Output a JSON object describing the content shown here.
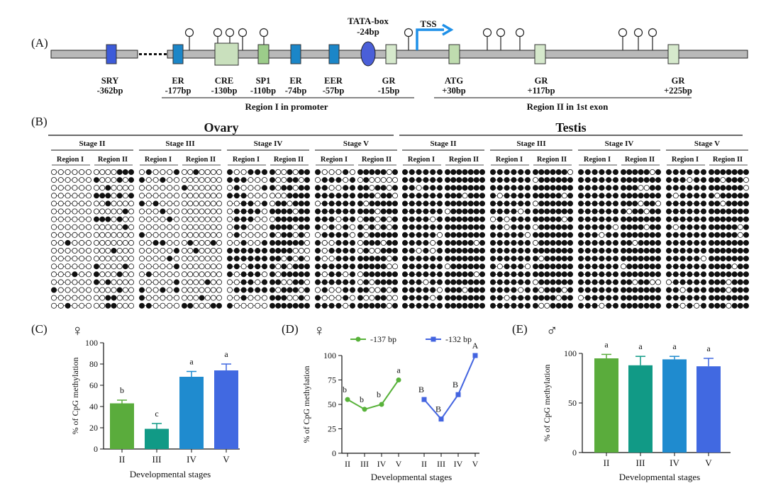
{
  "panels": {
    "A": "(A)",
    "B": "(B)",
    "C": "(C)",
    "D": "(D)",
    "E": "(E)"
  },
  "gene_map": {
    "tata_label": "TATA-box",
    "tata_pos": "-24bp",
    "tss_label": "TSS",
    "elements": [
      {
        "name": "SRY",
        "pos": "-362bp",
        "color": "#3d5bd9"
      },
      {
        "name": "ER",
        "pos": "-177bp",
        "color": "#1b86c8"
      },
      {
        "name": "CRE",
        "pos": "-130bp",
        "color": "#c9e0bd"
      },
      {
        "name": "SP1",
        "pos": "-110bp",
        "color": "#9ccc8a"
      },
      {
        "name": "ER",
        "pos": "-74bp",
        "color": "#1b86c8"
      },
      {
        "name": "EER",
        "pos": "-57bp",
        "color": "#1b86c8"
      },
      {
        "name": "GR",
        "pos": "-15bp",
        "color": "#d6e9cc"
      },
      {
        "name": "ATG",
        "pos": "+30bp",
        "color": "#bfdcaf"
      },
      {
        "name": "GR",
        "pos": "+117bp",
        "color": "#d6e9cc"
      },
      {
        "name": "GR",
        "pos": "+225bp",
        "color": "#d6e9cc"
      }
    ],
    "region1_label": "Region I  in promoter",
    "region2_label": "Region II in 1st exon"
  },
  "methylation": {
    "tissues": [
      "Ovary",
      "Testis"
    ],
    "stages": [
      "Stage II",
      "Stage III",
      "Stage IV",
      "Stage V"
    ],
    "regions": [
      "Region I",
      "Region II"
    ]
  },
  "symbols": {
    "female": "♀",
    "male": "♂"
  },
  "chart_data": [
    {
      "id": "C",
      "type": "bar",
      "sex": "female",
      "categories": [
        "II",
        "III",
        "IV",
        "V"
      ],
      "values": [
        43,
        19,
        68,
        74
      ],
      "errors": [
        3,
        5,
        5,
        6
      ],
      "letters": [
        "b",
        "c",
        "a",
        "a"
      ],
      "colors": [
        "#5aac3c",
        "#119a86",
        "#1f8bcf",
        "#4169e1"
      ],
      "xlabel": "Developmental stages",
      "ylabel": "% of CpG methylation",
      "ylim": [
        0,
        100
      ],
      "yticks": [
        0,
        20,
        40,
        60,
        80,
        100
      ]
    },
    {
      "id": "D",
      "type": "line",
      "sex": "female",
      "categories": [
        "II",
        "III",
        "IV",
        "V"
      ],
      "series": [
        {
          "name": "-137 bp",
          "values": [
            55,
            45,
            50,
            75
          ],
          "letters": [
            "b",
            "b",
            "b",
            "a"
          ],
          "color": "#58b23a"
        },
        {
          "name": "-132 bp",
          "values": [
            55,
            35,
            60,
            100
          ],
          "letters": [
            "B",
            "B",
            "B",
            "A"
          ],
          "color": "#4364e0"
        }
      ],
      "xlabel": "Developmental stages",
      "ylabel": "% of CpG methylation",
      "ylim": [
        0,
        100
      ],
      "yticks": [
        0,
        25,
        50,
        75,
        100
      ]
    },
    {
      "id": "E",
      "type": "bar",
      "sex": "male",
      "categories": [
        "II",
        "III",
        "IV",
        "V"
      ],
      "values": [
        95,
        88,
        94,
        87
      ],
      "errors": [
        4,
        9,
        3,
        8
      ],
      "letters": [
        "a",
        "a",
        "a",
        "a"
      ],
      "colors": [
        "#5aac3c",
        "#119a86",
        "#1f8bcf",
        "#4169e1"
      ],
      "xlabel": "Developmental stages",
      "ylabel": "% of CpG methylation",
      "ylim": [
        0,
        100
      ],
      "yticks": [
        0,
        50,
        100
      ]
    }
  ]
}
